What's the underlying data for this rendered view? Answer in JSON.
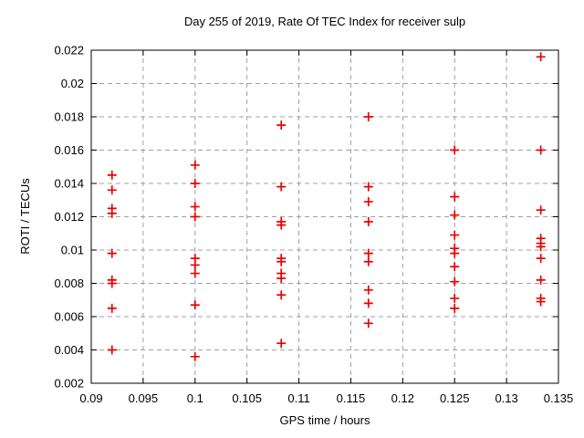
{
  "chart_data": {
    "type": "scatter",
    "title": "Day 255 of 2019, Rate Of TEC Index for receiver sulp",
    "xlabel": "GPS time / hours",
    "ylabel": "ROTI / TECUs",
    "xlim": [
      0.09,
      0.135
    ],
    "ylim": [
      0.002,
      0.022
    ],
    "xtick_values": [
      0.09,
      0.095,
      0.1,
      0.105,
      0.11,
      0.115,
      0.12,
      0.125,
      0.13,
      0.135
    ],
    "xtick_labels": [
      "0.09",
      "0.095",
      "0.1",
      "0.105",
      "0.11",
      "0.115",
      "0.12",
      "0.125",
      "0.13",
      "0.135"
    ],
    "ytick_values": [
      0.002,
      0.004,
      0.006,
      0.008,
      0.01,
      0.012,
      0.014,
      0.016,
      0.018,
      0.02,
      0.022
    ],
    "ytick_labels": [
      "0.002",
      "0.004",
      "0.006",
      "0.008",
      "0.01",
      "0.012",
      "0.014",
      "0.016",
      "0.018",
      "0.02",
      "0.022"
    ],
    "grid": true,
    "legend": "none",
    "marker": {
      "shape": "plus",
      "color": "#ee0000",
      "size": 10
    },
    "grid_color": "#a0a0a0",
    "border_color": "#000000",
    "points": [
      [
        0.092,
        0.0145
      ],
      [
        0.092,
        0.0136
      ],
      [
        0.092,
        0.0125
      ],
      [
        0.092,
        0.0122
      ],
      [
        0.092,
        0.0098
      ],
      [
        0.092,
        0.0082
      ],
      [
        0.092,
        0.008
      ],
      [
        0.092,
        0.0065
      ],
      [
        0.092,
        0.004
      ],
      [
        0.1,
        0.0151
      ],
      [
        0.1,
        0.014
      ],
      [
        0.1,
        0.0126
      ],
      [
        0.1,
        0.012
      ],
      [
        0.1,
        0.0095
      ],
      [
        0.1,
        0.0091
      ],
      [
        0.1,
        0.0086
      ],
      [
        0.1,
        0.0067
      ],
      [
        0.1,
        0.0036
      ],
      [
        0.1083,
        0.0175
      ],
      [
        0.1083,
        0.0138
      ],
      [
        0.1083,
        0.0117
      ],
      [
        0.1083,
        0.0115
      ],
      [
        0.1083,
        0.0095
      ],
      [
        0.1083,
        0.0093
      ],
      [
        0.1083,
        0.0086
      ],
      [
        0.1083,
        0.0083
      ],
      [
        0.1083,
        0.0073
      ],
      [
        0.1083,
        0.0044
      ],
      [
        0.1167,
        0.018
      ],
      [
        0.1167,
        0.0138
      ],
      [
        0.1167,
        0.0129
      ],
      [
        0.1167,
        0.0117
      ],
      [
        0.1167,
        0.0098
      ],
      [
        0.1167,
        0.0093
      ],
      [
        0.1167,
        0.0076
      ],
      [
        0.1167,
        0.0068
      ],
      [
        0.1167,
        0.0056
      ],
      [
        0.125,
        0.016
      ],
      [
        0.125,
        0.0132
      ],
      [
        0.125,
        0.0121
      ],
      [
        0.125,
        0.0109
      ],
      [
        0.125,
        0.0101
      ],
      [
        0.125,
        0.0098
      ],
      [
        0.125,
        0.009
      ],
      [
        0.125,
        0.0081
      ],
      [
        0.125,
        0.0071
      ],
      [
        0.125,
        0.0065
      ],
      [
        0.1333,
        0.0216
      ],
      [
        0.1333,
        0.016
      ],
      [
        0.1333,
        0.0124
      ],
      [
        0.1333,
        0.0107
      ],
      [
        0.1333,
        0.0104
      ],
      [
        0.1333,
        0.0102
      ],
      [
        0.1333,
        0.0095
      ],
      [
        0.1333,
        0.0082
      ],
      [
        0.1333,
        0.0071
      ],
      [
        0.1333,
        0.0069
      ]
    ]
  }
}
